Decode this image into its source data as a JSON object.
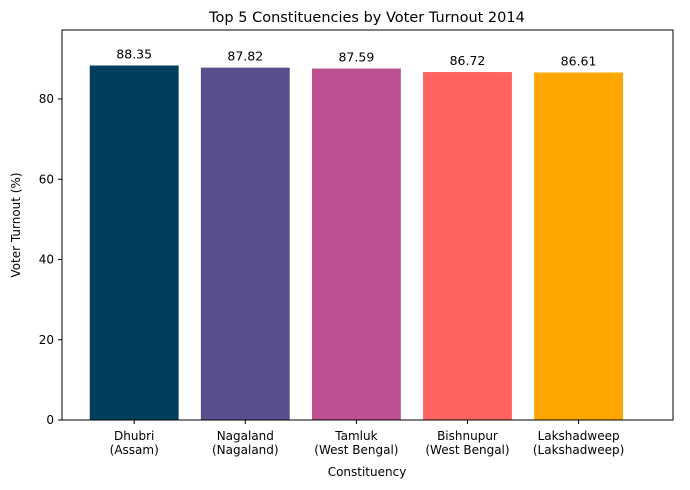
{
  "chart_data": {
    "type": "bar",
    "title": "Top 5 Constituencies by Voter Turnout 2014",
    "xlabel": "Constituency",
    "ylabel": "Voter Turnout (%)",
    "categories": [
      [
        "Dhubri",
        "(Assam)"
      ],
      [
        "Nagaland",
        "(Nagaland)"
      ],
      [
        "Tamluk",
        "(West Bengal)"
      ],
      [
        "Bishnupur",
        "(West Bengal)"
      ],
      [
        "Lakshadweep",
        "(Lakshadweep)"
      ]
    ],
    "values": [
      88.35,
      87.82,
      87.59,
      86.72,
      86.61
    ],
    "value_labels": [
      "88.35",
      "87.82",
      "87.59",
      "86.72",
      "86.61"
    ],
    "colors": [
      "#003f5c",
      "#58508d",
      "#bc5090",
      "#ff6361",
      "#ffa600"
    ],
    "ylim": [
      0,
      97.2
    ],
    "yticks": [
      0,
      20,
      40,
      60,
      80
    ],
    "grid": false,
    "legend": "none"
  }
}
